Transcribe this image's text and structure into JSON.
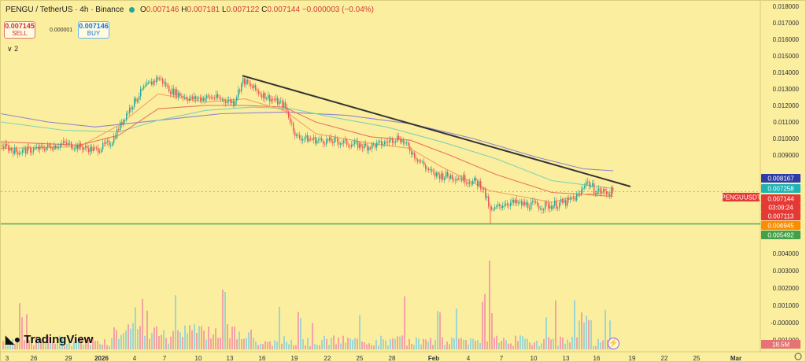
{
  "header": {
    "symbol": "PENGU / TetherUS · 4h · Binance",
    "o_label": "O",
    "o_value": "0.007146",
    "h_label": "H",
    "h_value": "0.007181",
    "l_label": "L",
    "l_value": "0.007122",
    "c_label": "C",
    "c_value": "0.007144",
    "change": "−0.000003 (−0.04%)",
    "status_color": "#26a69a"
  },
  "trade": {
    "sell_price": "0.007145",
    "sell_label": "SELL",
    "spread": "0.000001",
    "buy_price": "0.007146",
    "buy_label": "BUY",
    "indicators_toggle": "∨ 2"
  },
  "branding": {
    "logo_text": "TradingView",
    "logo_icon": "tradingview-logo-icon",
    "bolt_icon": "lightning-icon"
  },
  "colors": {
    "background": "#fbee9e",
    "up": "#26a69a",
    "down": "#ef5350",
    "ema_fast": "#f4a261",
    "ema_slow": "#e9765b",
    "ma_green": "#7fd3b5",
    "ma_purple": "#8f86c9",
    "trendline": "#333333",
    "support": "#4caf50"
  },
  "chart_data": {
    "type": "line",
    "title": "PENGU / TetherUS · 4h · Binance",
    "ylim": [
      -0.0005,
      0.0182
    ],
    "price_ticks": [
      "0.018000",
      "0.017000",
      "0.016000",
      "0.015000",
      "0.014000",
      "0.013000",
      "0.012000",
      "0.011000",
      "0.010000",
      "0.009000",
      "0.004000",
      "0.003000",
      "0.002000",
      "0.001000",
      "-0.000000",
      "-0.001000"
    ],
    "price_tick_values": [
      0.018,
      0.017,
      0.016,
      0.015,
      0.014,
      0.013,
      0.012,
      0.011,
      0.01,
      0.009,
      0.004,
      0.003,
      0.002,
      0.001,
      0.0,
      -0.001
    ],
    "x_ticks": [
      "3",
      "26",
      "29",
      "2026",
      "4",
      "7",
      "10",
      "13",
      "16",
      "19",
      "22",
      "25",
      "28",
      "Feb",
      "4",
      "7",
      "10",
      "13",
      "16",
      "19",
      "22",
      "25",
      "Mar"
    ],
    "price_labels": [
      {
        "text": "0.008167",
        "value": 0.008167,
        "color": "#2f3ba8"
      },
      {
        "text": "0.007258",
        "value": 0.007258,
        "color": "#1fb4b4"
      },
      {
        "text": "PENGUUSDT",
        "value": 0.007144,
        "color": "#e53935"
      },
      {
        "text": "0.007144",
        "value": 0.007144,
        "color": "#e53935"
      },
      {
        "text": "03:09:24",
        "value": 0.0066,
        "color": "#e53935"
      },
      {
        "text": "0.007113",
        "value": 0.007113,
        "color": "#e53935"
      },
      {
        "text": "0.006945",
        "value": 0.006945,
        "color": "#fb8c00"
      },
      {
        "text": "0.005492",
        "value": 0.005492,
        "color": "#43a047"
      }
    ],
    "volume_label": "18.5M",
    "series": [
      {
        "values": [
          [
            0,
            0.0096
          ],
          [
            20,
            0.0092
          ],
          [
            50,
            0.0094
          ],
          [
            80,
            0.0097
          ],
          [
            120,
            0.0093
          ],
          [
            140,
            0.0098
          ],
          [
            160,
            0.0116
          ],
          [
            180,
            0.013
          ],
          [
            200,
            0.0137
          ],
          [
            215,
            0.0129
          ],
          [
            240,
            0.0124
          ],
          [
            270,
            0.0125
          ],
          [
            295,
            0.0122
          ],
          [
            307,
            0.0135
          ],
          [
            330,
            0.0127
          ],
          [
            360,
            0.012
          ],
          [
            375,
            0.0101
          ],
          [
            400,
            0.0099
          ],
          [
            430,
            0.0098
          ],
          [
            465,
            0.0095
          ],
          [
            485,
            0.0097
          ],
          [
            505,
            0.0101
          ],
          [
            525,
            0.009
          ],
          [
            548,
            0.008
          ],
          [
            580,
            0.0079
          ],
          [
            610,
            0.0075
          ],
          [
            622,
            0.0061
          ],
          [
            640,
            0.0066
          ],
          [
            660,
            0.0065
          ],
          [
            690,
            0.0064
          ],
          [
            720,
            0.0066
          ],
          [
            735,
            0.007
          ],
          [
            742,
            0.0077
          ],
          [
            755,
            0.0072
          ],
          [
            770,
            0.0071
          ],
          [
            778,
            0.00714
          ]
        ]
      },
      {
        "values": [
          [
            0,
            0.0094
          ],
          [
            100,
            0.0095
          ],
          [
            150,
            0.0108
          ],
          [
            200,
            0.0127
          ],
          [
            260,
            0.0122
          ],
          [
            310,
            0.0124
          ],
          [
            360,
            0.0117
          ],
          [
            400,
            0.0103
          ],
          [
            470,
            0.0097
          ],
          [
            520,
            0.0094
          ],
          [
            560,
            0.0084
          ],
          [
            620,
            0.0072
          ],
          [
            700,
            0.0066
          ],
          [
            740,
            0.007
          ],
          [
            778,
            0.0071
          ]
        ]
      },
      {
        "values": [
          [
            0,
            0.0098
          ],
          [
            100,
            0.0096
          ],
          [
            150,
            0.0102
          ],
          [
            200,
            0.0118
          ],
          [
            260,
            0.012
          ],
          [
            310,
            0.012
          ],
          [
            360,
            0.0119
          ],
          [
            400,
            0.011
          ],
          [
            470,
            0.0101
          ],
          [
            520,
            0.0099
          ],
          [
            570,
            0.009
          ],
          [
            630,
            0.008
          ],
          [
            700,
            0.0071
          ],
          [
            778,
            0.0069
          ]
        ]
      },
      {
        "values": [
          [
            0,
            0.011
          ],
          [
            80,
            0.0105
          ],
          [
            150,
            0.0104
          ],
          [
            200,
            0.0111
          ],
          [
            260,
            0.0117
          ],
          [
            320,
            0.0119
          ],
          [
            370,
            0.0118
          ],
          [
            420,
            0.0113
          ],
          [
            490,
            0.0107
          ],
          [
            560,
            0.0098
          ],
          [
            630,
            0.0088
          ],
          [
            700,
            0.0077
          ],
          [
            778,
            0.0073
          ]
        ]
      },
      {
        "values": [
          [
            0,
            0.0115
          ],
          [
            60,
            0.011
          ],
          [
            120,
            0.0107
          ],
          [
            200,
            0.0111
          ],
          [
            280,
            0.0115
          ],
          [
            360,
            0.0116
          ],
          [
            440,
            0.0114
          ],
          [
            520,
            0.0109
          ],
          [
            600,
            0.01
          ],
          [
            680,
            0.0089
          ],
          [
            740,
            0.0083
          ],
          [
            778,
            0.0082
          ]
        ]
      }
    ],
    "trendline": [
      [
        307,
        0.0138
      ],
      [
        800,
        0.0074
      ]
    ],
    "support_level": 0.0055
  }
}
